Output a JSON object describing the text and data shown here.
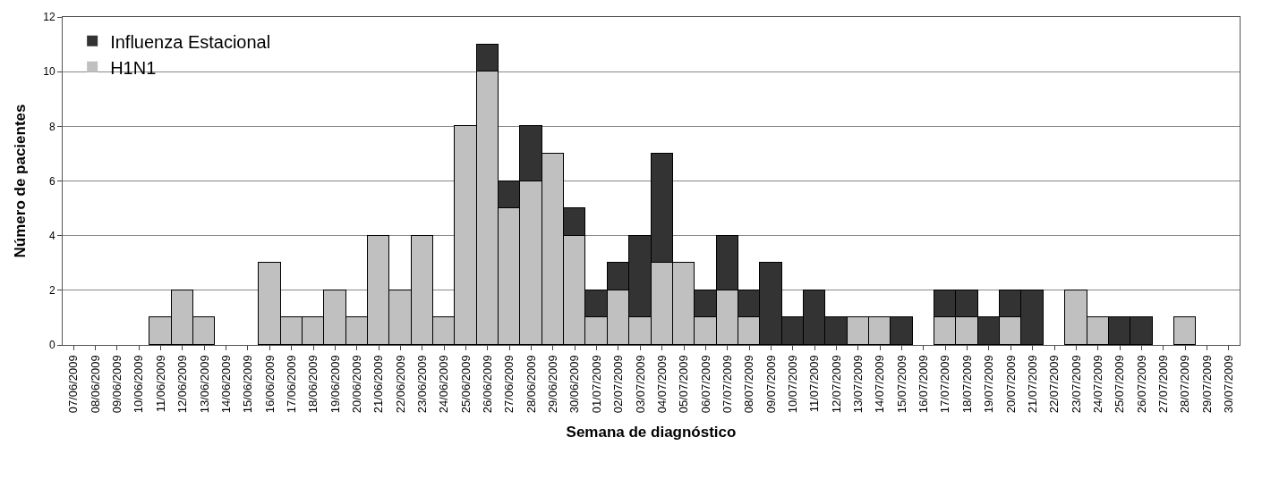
{
  "chart_data": {
    "type": "bar",
    "stacked": true,
    "xlabel": "Semana de diagnóstico",
    "ylabel": "Número de pacientes",
    "categories": [
      "07/06/2009",
      "08/06/2009",
      "09/06/2009",
      "10/06/2009",
      "11/06/2009",
      "12/06/2009",
      "13/06/2009",
      "14/06/2009",
      "15/06/2009",
      "16/06/2009",
      "17/06/2009",
      "18/06/2009",
      "19/06/2009",
      "20/06/2009",
      "21/06/2009",
      "22/06/2009",
      "23/06/2009",
      "24/06/2009",
      "25/06/2009",
      "26/06/2009",
      "27/06/2009",
      "28/06/2009",
      "29/06/2009",
      "30/06/2009",
      "01/07/2009",
      "02/07/2009",
      "03/07/2009",
      "04/07/2009",
      "05/07/2009",
      "06/07/2009",
      "07/07/2009",
      "08/07/2009",
      "09/07/2009",
      "10/07/2009",
      "11/07/2009",
      "12/07/2009",
      "13/07/2009",
      "14/07/2009",
      "15/07/2009",
      "16/07/2009",
      "17/07/2009",
      "18/07/2009",
      "19/07/2009",
      "20/07/2009",
      "21/07/2009",
      "22/07/2009",
      "23/07/2009",
      "24/07/2009",
      "25/07/2009",
      "26/07/2009",
      "27/07/2009",
      "28/07/2009",
      "29/07/2009",
      "30/07/2009"
    ],
    "series": [
      {
        "name": "H1N1",
        "color": "#c0c0c0",
        "values": [
          0,
          0,
          0,
          0,
          1,
          2,
          1,
          0,
          0,
          3,
          1,
          1,
          2,
          1,
          4,
          2,
          4,
          1,
          8,
          10,
          5,
          6,
          7,
          4,
          1,
          2,
          1,
          3,
          3,
          1,
          2,
          1,
          0,
          0,
          0,
          0,
          1,
          1,
          0,
          0,
          1,
          1,
          0,
          1,
          0,
          0,
          2,
          1,
          0,
          0,
          0,
          1,
          0,
          0
        ]
      },
      {
        "name": "Influenza Estacional",
        "color": "#333333",
        "values": [
          0,
          0,
          0,
          0,
          0,
          0,
          0,
          0,
          0,
          0,
          0,
          0,
          0,
          0,
          0,
          0,
          0,
          0,
          0,
          1,
          1,
          2,
          0,
          1,
          1,
          1,
          3,
          4,
          0,
          1,
          2,
          1,
          3,
          1,
          2,
          1,
          0,
          0,
          1,
          0,
          1,
          1,
          1,
          1,
          2,
          0,
          0,
          0,
          1,
          1,
          0,
          0,
          0,
          0
        ]
      }
    ],
    "ylim": [
      0,
      12
    ],
    "yticks": [
      0,
      2,
      4,
      6,
      8,
      10,
      12
    ],
    "grid": "y",
    "legend": "top left"
  }
}
